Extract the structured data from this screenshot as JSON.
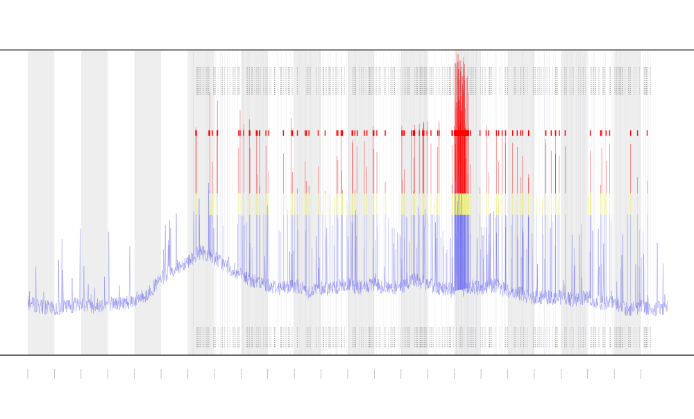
{
  "chart_data": {
    "type": "line",
    "title": "",
    "xlabel": "",
    "ylabel": "",
    "x_range": [
      0,
      24
    ],
    "ylim": [
      0,
      100
    ],
    "grid": false,
    "shaded_bands": [
      [
        0,
        1
      ],
      [
        2,
        3
      ],
      [
        4,
        5
      ],
      [
        6,
        7
      ],
      [
        8,
        9
      ],
      [
        10,
        11
      ],
      [
        12,
        13
      ],
      [
        14,
        15
      ],
      [
        16,
        17
      ],
      [
        18,
        19
      ],
      [
        20,
        21
      ],
      [
        22,
        23
      ]
    ],
    "thresholds": {
      "yellow": 46,
      "red": 53,
      "saturation": 73
    },
    "colors": {
      "signal": "#6f6ff0",
      "warning": "#eeee80",
      "alert": "#ff0000",
      "band": "#eeeeee",
      "ticks": "#555555"
    },
    "series": [
      {
        "x": [
          0,
          0.5,
          1,
          1.5,
          2,
          2.5,
          3,
          3.5,
          4,
          4.5,
          5,
          5.5,
          6,
          6.5,
          7,
          7.5,
          8,
          8.5,
          9,
          9.5,
          10,
          10.5,
          11,
          11.5,
          12,
          12.5,
          13,
          13.5,
          14,
          14.5,
          15,
          15.5,
          16,
          16.5,
          17,
          17.5,
          18,
          18.5,
          19,
          19.5,
          20,
          20.5,
          21,
          21.5,
          22,
          22.5,
          23,
          23.5,
          24
        ],
        "values": [
          17,
          16,
          15,
          16,
          17,
          16,
          17,
          17,
          18,
          20,
          25,
          28,
          31,
          34,
          32,
          29,
          26,
          24,
          23,
          22,
          23,
          21,
          22,
          22,
          23,
          22,
          23,
          22,
          22,
          25,
          23,
          22,
          21,
          22,
          22,
          23,
          21,
          20,
          19,
          19,
          19,
          18,
          19,
          17,
          17,
          15,
          16,
          15,
          16
        ]
      }
    ]
  }
}
